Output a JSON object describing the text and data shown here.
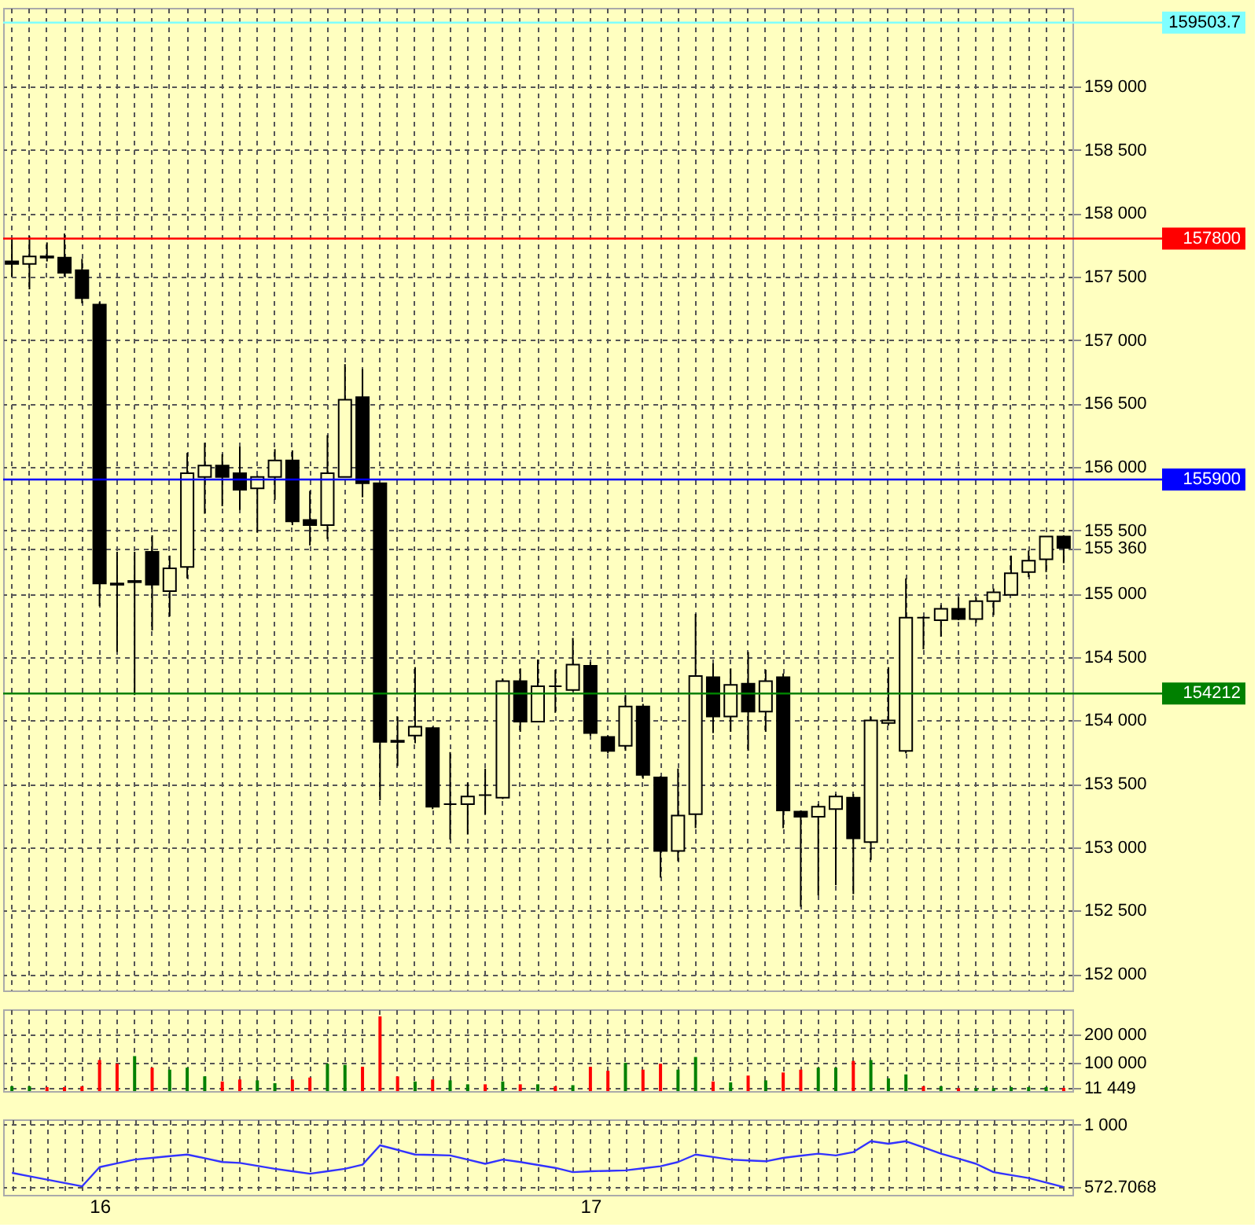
{
  "chart_data": [
    {
      "type": "candlestick",
      "categories": [
        null,
        null,
        null,
        null,
        null,
        "16",
        null,
        null,
        null,
        null,
        null,
        null,
        null,
        null,
        null,
        null,
        null,
        null,
        null,
        null,
        null,
        null,
        null,
        null,
        null,
        null,
        null,
        null,
        null,
        null,
        null,
        null,
        null,
        "17",
        null,
        null,
        null,
        null,
        null,
        null,
        null,
        null,
        null,
        null,
        null,
        null,
        null,
        null,
        null,
        null,
        null,
        null,
        null,
        null,
        null,
        null,
        null,
        null,
        null,
        null,
        null
      ],
      "ohlc": [
        [
          157620,
          157800,
          157500,
          157600
        ],
        [
          157600,
          157820,
          157400,
          157660
        ],
        [
          157650,
          157770,
          157620,
          157660
        ],
        [
          157650,
          157840,
          157500,
          157530
        ],
        [
          157550,
          157640,
          157290,
          157330
        ],
        [
          157280,
          157300,
          154900,
          155080
        ],
        [
          155080,
          155330,
          154540,
          155070
        ],
        [
          155100,
          155330,
          154200,
          155090
        ],
        [
          155330,
          155460,
          154710,
          155070
        ],
        [
          155020,
          155300,
          154820,
          155200
        ],
        [
          155210,
          156110,
          155120,
          155950
        ],
        [
          155920,
          156190,
          155630,
          156010
        ],
        [
          156010,
          156100,
          155690,
          155920
        ],
        [
          155950,
          156160,
          155660,
          155820
        ],
        [
          155830,
          155930,
          155480,
          155920
        ],
        [
          155920,
          156140,
          155740,
          156050
        ],
        [
          156050,
          156130,
          155540,
          155570
        ],
        [
          155580,
          155810,
          155380,
          155540
        ],
        [
          155540,
          156250,
          155430,
          155950
        ],
        [
          155920,
          156810,
          155920,
          156530
        ],
        [
          156550,
          156770,
          155760,
          155870
        ],
        [
          155870,
          155870,
          153370,
          153830
        ],
        [
          153830,
          154030,
          153640,
          153840
        ],
        [
          153880,
          154420,
          153820,
          153950
        ],
        [
          153940,
          153950,
          153300,
          153320
        ],
        [
          153340,
          153750,
          153060,
          153340
        ],
        [
          153340,
          153510,
          153100,
          153400
        ],
        [
          153410,
          153620,
          153260,
          153410
        ],
        [
          153390,
          154330,
          153380,
          154310
        ],
        [
          154310,
          154410,
          153910,
          153990
        ],
        [
          153990,
          154480,
          153990,
          154270
        ],
        [
          154270,
          154400,
          154060,
          154270
        ],
        [
          154240,
          154650,
          154230,
          154440
        ],
        [
          154430,
          154460,
          153880,
          153900
        ],
        [
          153870,
          153880,
          153740,
          153760
        ],
        [
          153800,
          154200,
          153760,
          154110
        ],
        [
          154110,
          154130,
          153540,
          153570
        ],
        [
          153550,
          153560,
          152760,
          152970
        ],
        [
          152970,
          153620,
          152890,
          153250
        ],
        [
          153260,
          154840,
          153150,
          154350
        ],
        [
          154340,
          154450,
          153900,
          154030
        ],
        [
          154030,
          154410,
          153910,
          154280
        ],
        [
          154290,
          154540,
          153760,
          154070
        ],
        [
          154070,
          154400,
          153910,
          154310
        ],
        [
          154340,
          154370,
          153150,
          153290
        ],
        [
          153280,
          153290,
          152530,
          153240
        ],
        [
          153240,
          153340,
          152620,
          153320
        ],
        [
          153300,
          153420,
          152700,
          153400
        ],
        [
          153390,
          153420,
          152630,
          153070
        ],
        [
          153040,
          154030,
          152900,
          154000
        ],
        [
          153980,
          154420,
          153960,
          154000
        ],
        [
          153760,
          155120,
          153740,
          154810
        ],
        [
          154810,
          154820,
          154560,
          154810
        ],
        [
          154790,
          154910,
          154660,
          154880
        ],
        [
          154880,
          154970,
          154790,
          154800
        ],
        [
          154800,
          154970,
          154770,
          154940
        ],
        [
          154940,
          155040,
          154830,
          155010
        ],
        [
          154990,
          155300,
          154990,
          155160
        ],
        [
          155170,
          155340,
          155130,
          155260
        ],
        [
          155270,
          155450,
          155170,
          155450
        ],
        [
          155450,
          155460,
          155240,
          155360
        ]
      ],
      "ylim": [
        151870,
        159620
      ],
      "yticks": [
        {
          "value": 152000,
          "label": "152 000"
        },
        {
          "value": 152500,
          "label": "152 500"
        },
        {
          "value": 153000,
          "label": "153 000"
        },
        {
          "value": 153500,
          "label": "153 500"
        },
        {
          "value": 154000,
          "label": "154 000"
        },
        {
          "value": 154500,
          "label": "154 500"
        },
        {
          "value": 155000,
          "label": "155 000"
        },
        {
          "value": 155500,
          "label": "155 500"
        },
        {
          "value": 156000,
          "label": "156 000"
        },
        {
          "value": 156500,
          "label": "156 500"
        },
        {
          "value": 157000,
          "label": "157 000"
        },
        {
          "value": 157500,
          "label": "157 500"
        },
        {
          "value": 158000,
          "label": "158 000"
        },
        {
          "value": 158500,
          "label": "158 500"
        },
        {
          "value": 159000,
          "label": "159 000"
        },
        {
          "value": 155360,
          "label": "155 360"
        }
      ],
      "ref_lines": [
        {
          "axis": "y",
          "value": 159503.7,
          "label": "159503.7",
          "color": "#80ffff"
        },
        {
          "axis": "y",
          "value": 157800,
          "label": "157800",
          "color": "#ff0000"
        },
        {
          "axis": "y",
          "value": 155900,
          "label": "155900",
          "color": "#0000ff"
        },
        {
          "axis": "y",
          "value": 154212,
          "label": "154212",
          "color": "#008000"
        }
      ],
      "grid": true,
      "tick_labels": "y"
    },
    {
      "type": "bar",
      "categories": [
        null,
        null,
        null,
        null,
        null,
        "16",
        null,
        null,
        null,
        null,
        null,
        null,
        null,
        null,
        null,
        null,
        null,
        null,
        null,
        null,
        null,
        null,
        null,
        null,
        null,
        null,
        null,
        null,
        null,
        null,
        null,
        null,
        null,
        "17",
        null,
        null,
        null,
        null,
        null,
        null,
        null,
        null,
        null,
        null,
        null,
        null,
        null,
        null,
        null,
        null,
        null,
        null,
        null,
        null,
        null,
        null,
        null,
        null,
        null,
        null,
        null
      ],
      "values": [
        17000,
        17000,
        14000,
        14000,
        17000,
        110000,
        97000,
        124000,
        83000,
        76000,
        83000,
        52000,
        34000,
        41000,
        38000,
        28000,
        41000,
        48000,
        97000,
        93000,
        86000,
        265000,
        52000,
        34000,
        41000,
        38000,
        24000,
        24000,
        34000,
        24000,
        24000,
        17000,
        21000,
        86000,
        72000,
        100000,
        76000,
        97000,
        76000,
        121000,
        34000,
        31000,
        55000,
        38000,
        66000,
        76000,
        83000,
        83000,
        107000,
        110000,
        45000,
        59000,
        17000,
        17000,
        10000,
        10000,
        10000,
        14000,
        14000,
        14000,
        11449
      ],
      "colors": [
        "#008000",
        "#008000",
        "#ff0000",
        "#ff0000",
        "#ff0000",
        "#ff0000",
        "#ff0000",
        "#008000",
        "#ff0000",
        "#008000",
        "#008000",
        "#008000",
        "#ff0000",
        "#ff0000",
        "#008000",
        "#008000",
        "#ff0000",
        "#ff0000",
        "#008000",
        "#008000",
        "#ff0000",
        "#ff0000",
        "#ff0000",
        "#008000",
        "#ff0000",
        "#008000",
        "#008000",
        "#ff0000",
        "#008000",
        "#ff0000",
        "#008000",
        "#ff0000",
        "#008000",
        "#ff0000",
        "#ff0000",
        "#008000",
        "#ff0000",
        "#ff0000",
        "#008000",
        "#008000",
        "#ff0000",
        "#008000",
        "#ff0000",
        "#008000",
        "#ff0000",
        "#ff0000",
        "#008000",
        "#008000",
        "#ff0000",
        "#008000",
        "#008000",
        "#008000",
        "#ff0000",
        "#008000",
        "#ff0000",
        "#008000",
        "#008000",
        "#008000",
        "#008000",
        "#008000",
        "#ff0000"
      ],
      "ylim": [
        0,
        290000
      ],
      "yticks": [
        {
          "value": 100000,
          "label": "100 000"
        },
        {
          "value": 200000,
          "label": "200 000"
        },
        {
          "value": 11449,
          "label": "11 449"
        }
      ],
      "grid": true,
      "tick_labels": "y"
    },
    {
      "type": "line",
      "categories": [
        null,
        null,
        null,
        null,
        null,
        "16",
        null,
        null,
        null,
        null,
        null,
        null,
        null,
        null,
        null,
        null,
        null,
        null,
        null,
        null,
        null,
        null,
        null,
        null,
        null,
        null,
        null,
        null,
        null,
        null,
        null,
        null,
        null,
        "17",
        null,
        null,
        null,
        null,
        null,
        null,
        null,
        null,
        null,
        null,
        null,
        null,
        null,
        null,
        null,
        null,
        null,
        null,
        null,
        null,
        null,
        null,
        null,
        null,
        null,
        null,
        null
      ],
      "series": [
        {
          "color": "#3333ff",
          "values": [
            670,
            647,
            624,
            601,
            578,
            709,
            735,
            761,
            772,
            784,
            795,
            770,
            744,
            738,
            718,
            698,
            681,
            664,
            681,
            698,
            726,
            858,
            827,
            795,
            792,
            789,
            761,
            732,
            761,
            744,
            724,
            704,
            675,
            681,
            684,
            687,
            701,
            715,
            744,
            795,
            778,
            761,
            755,
            749,
            772,
            787,
            801,
            789,
            812,
            886,
            869,
            886,
            844,
            801,
            767,
            732,
            675,
            655,
            635,
            604,
            572.7068
          ]
        }
      ],
      "ylim": [
        520,
        1035
      ],
      "yticks": [
        {
          "value": 1000,
          "label": "1 000"
        },
        {
          "value": 572.7068,
          "label": "572.7068"
        }
      ],
      "grid": true
    }
  ]
}
